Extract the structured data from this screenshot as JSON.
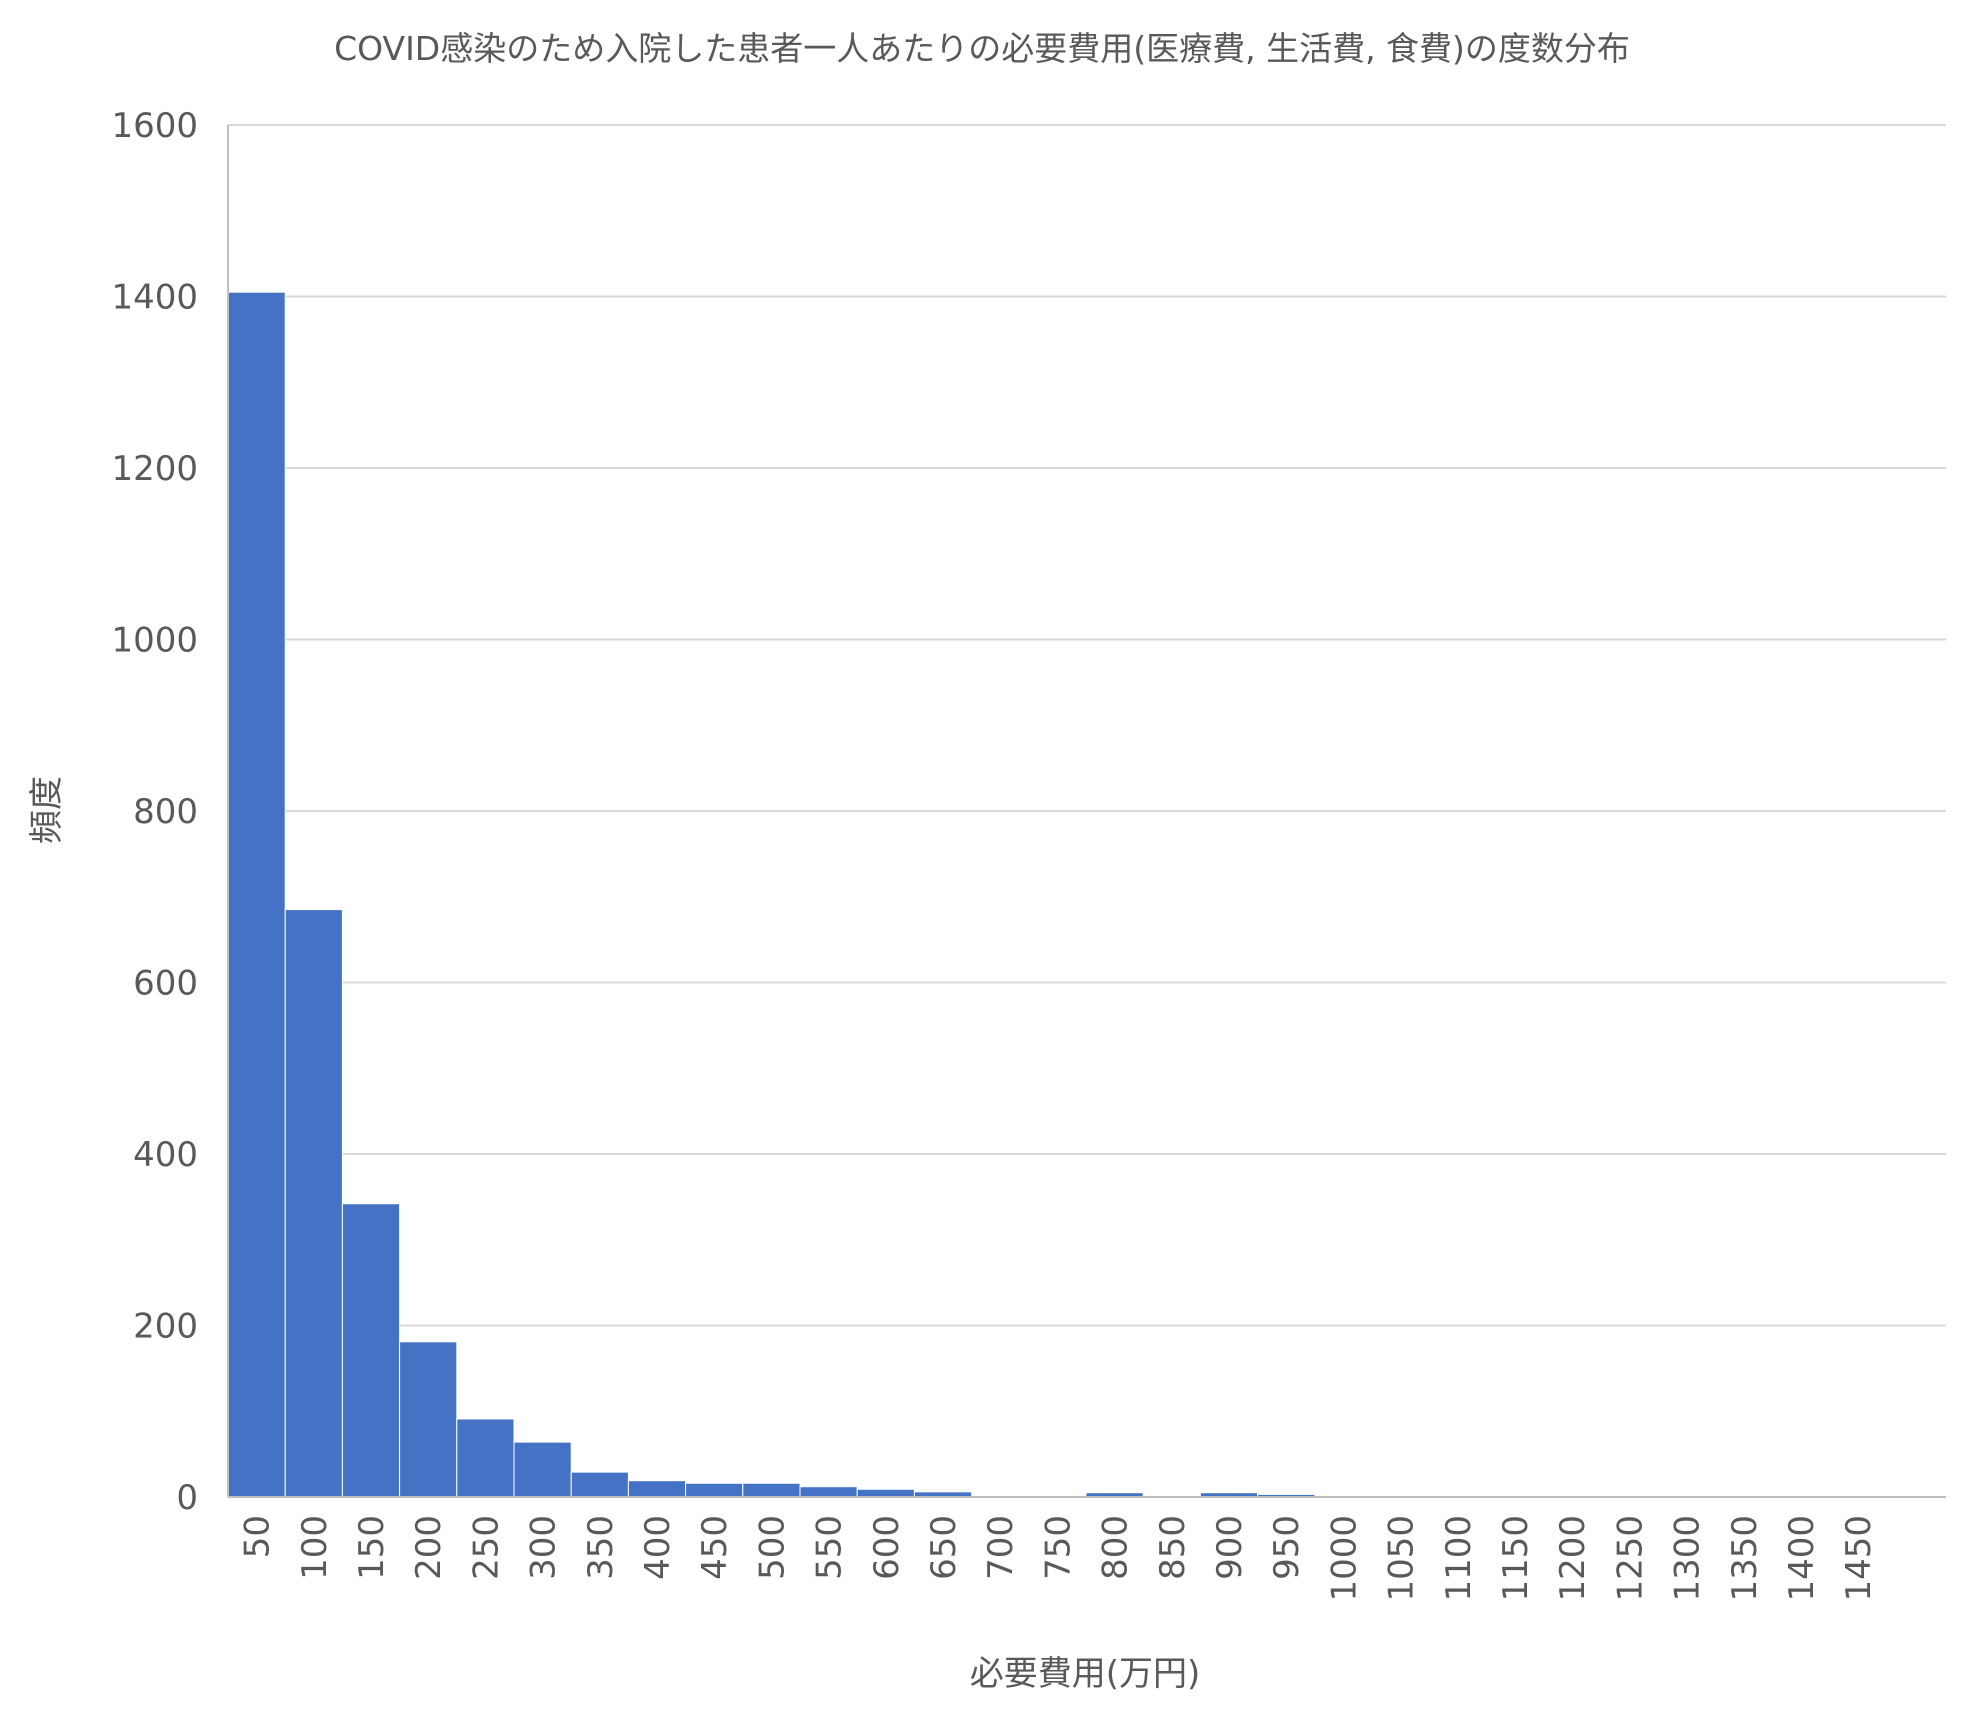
{
  "chart_data": {
    "type": "bar",
    "title": "COVID感染のため入院した患者一人あたりの必要費用(医療費, 生活費, 食費)の度数分布",
    "xlabel": "必要費用(万円)",
    "ylabel": "頻度",
    "categories": [
      "50",
      "100",
      "150",
      "200",
      "250",
      "300",
      "350",
      "400",
      "450",
      "500",
      "550",
      "600",
      "650",
      "700",
      "750",
      "800",
      "850",
      "900",
      "950",
      "1000",
      "1050",
      "1100",
      "1150",
      "1200",
      "1250",
      "1300",
      "1350",
      "1400",
      "1450"
    ],
    "values": [
      1405,
      685,
      342,
      181,
      91,
      64,
      29,
      19,
      16,
      16,
      12,
      9,
      6,
      0,
      0,
      5,
      0,
      5,
      3,
      0,
      0,
      0,
      0,
      0,
      0,
      0,
      0,
      0,
      0
    ],
    "ylim": [
      0,
      1600
    ],
    "yticks": [
      "0",
      "200",
      "400",
      "600",
      "800",
      "1000",
      "1200",
      "1400",
      "1600"
    ],
    "grid": true,
    "legend": "none",
    "colors": {
      "bar": "#4472C4",
      "grid": "#D9D9D9",
      "axis": "#BFBFBF",
      "text": "#595959"
    }
  }
}
